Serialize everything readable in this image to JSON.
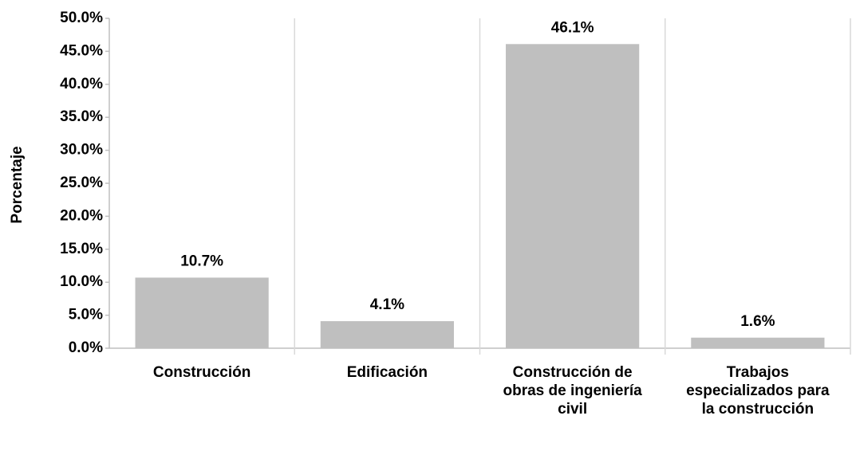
{
  "chart_data": {
    "type": "bar",
    "y_axis_label": "Porcentaje",
    "categories": [
      "Construcción",
      "Edificación",
      "Construcción de obras de ingeniería civil",
      "Trabajos especializados para la construcción"
    ],
    "values": [
      10.7,
      4.1,
      46.1,
      1.6
    ],
    "value_labels": [
      "10.7%",
      "4.1%",
      "46.1%",
      "1.6%"
    ],
    "color": "#bfbfbf",
    "ylim": [
      0,
      50
    ],
    "yticks": [
      {
        "value": 0,
        "label": "0.0%"
      },
      {
        "value": 5,
        "label": "5.0%"
      },
      {
        "value": 10,
        "label": "10.0%"
      },
      {
        "value": 15,
        "label": "15.0%"
      },
      {
        "value": 20,
        "label": "20.0%"
      },
      {
        "value": 25,
        "label": "25.0%"
      },
      {
        "value": 30,
        "label": "30.0%"
      },
      {
        "value": 35,
        "label": "35.0%"
      },
      {
        "value": 40,
        "label": "40.0%"
      },
      {
        "value": 45,
        "label": "45.0%"
      },
      {
        "value": 50,
        "label": "50.0%"
      }
    ],
    "grid": false
  }
}
